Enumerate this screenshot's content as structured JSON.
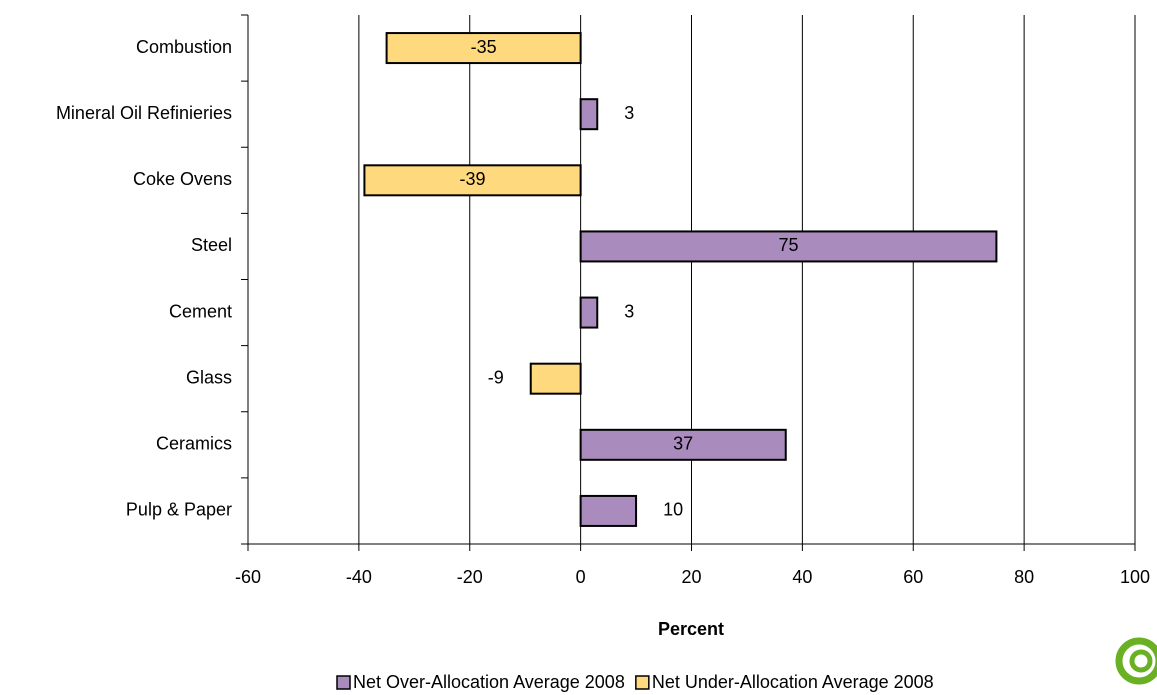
{
  "chart_data": {
    "type": "bar",
    "orientation": "horizontal",
    "x_label": "Percent",
    "categories": [
      "Combustion",
      "Mineral Oil Refinieries",
      "Coke Ovens",
      "Steel",
      "Cement",
      "Glass",
      "Ceramics",
      "Pulp & Paper"
    ],
    "series": [
      {
        "name": "Net Over-Allocation Average 2008",
        "color": "#a98bbd",
        "values": [
          null,
          3,
          null,
          75,
          3,
          null,
          37,
          10
        ]
      },
      {
        "name": "Net Under-Allocation Average 2008",
        "color": "#ffd97d",
        "values": [
          -35,
          null,
          -39,
          null,
          null,
          -9,
          null,
          null
        ]
      }
    ],
    "xlim": [
      -60,
      100
    ],
    "xticks": [
      -60,
      -40,
      -20,
      0,
      20,
      40,
      60,
      80,
      100
    ],
    "grid": true
  }
}
